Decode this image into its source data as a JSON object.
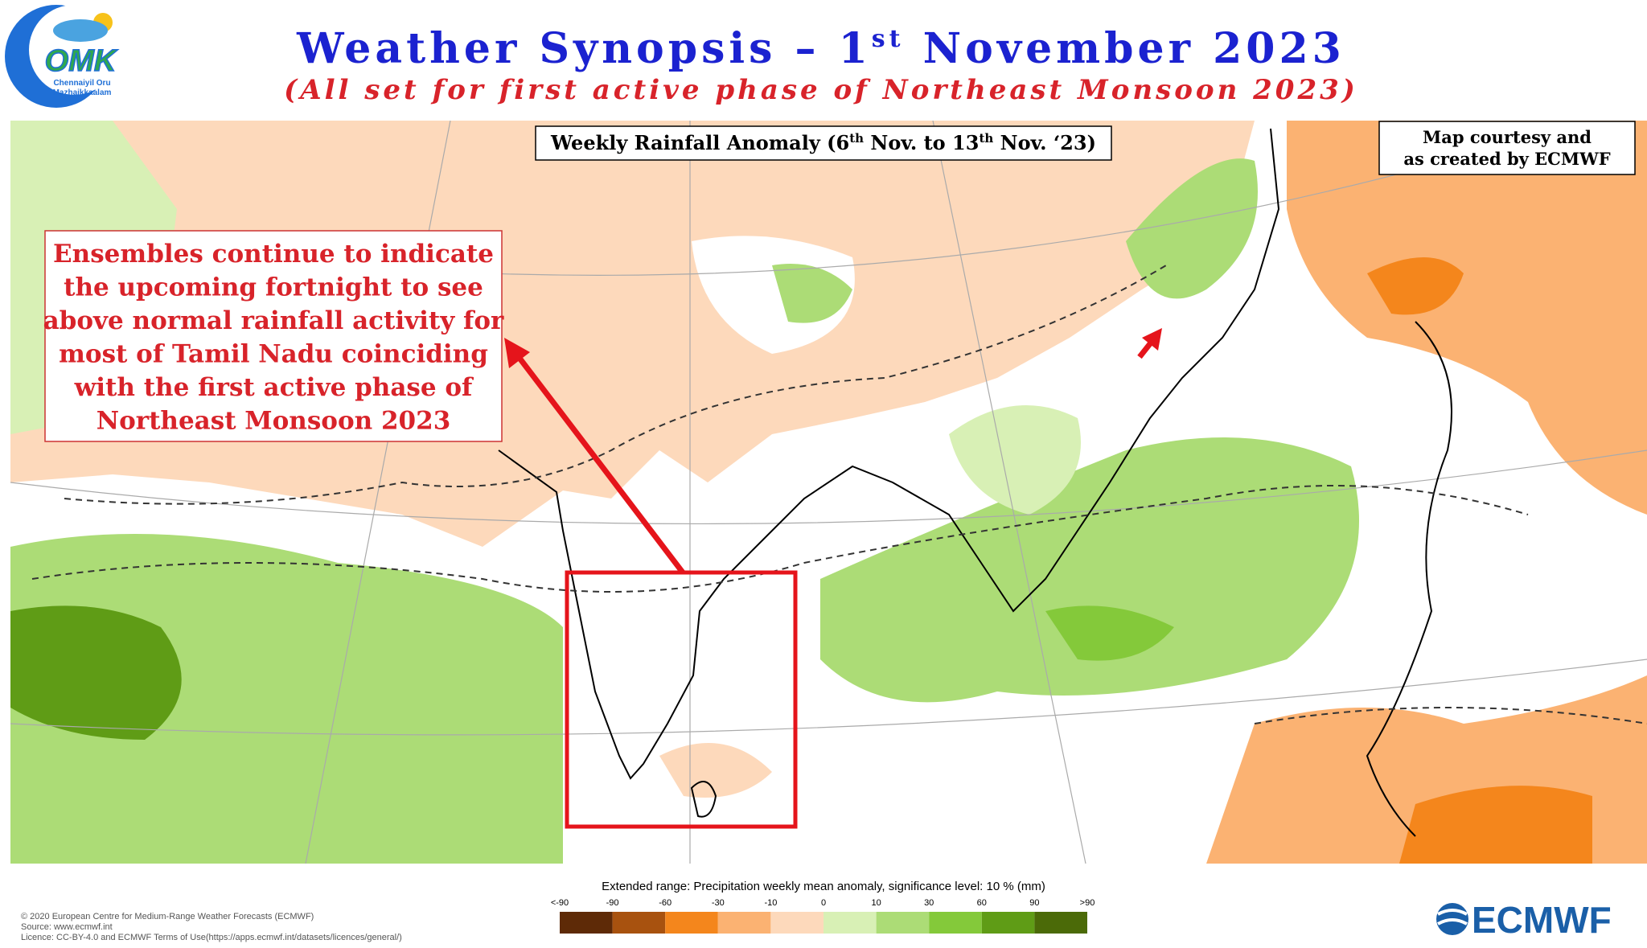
{
  "logo": {
    "mark": "OMK",
    "lines": [
      "Chennaiyil Oru",
      "Mazhaikkaalam"
    ]
  },
  "header": {
    "title": {
      "before": "Weather Synopsis – 1",
      "sup": "st",
      "after": " November 2023"
    },
    "subtitle": "(All set for first active phase of Northeast Monsoon 2023)"
  },
  "map": {
    "title": {
      "p1": "Weekly Rainfall Anomaly (6",
      "s1": "th",
      "p2": " Nov. to 13",
      "s2": "th",
      "p3": " Nov. ‘23)"
    },
    "credit": [
      "Map courtesy and",
      "as created by ECMWF"
    ],
    "annotation": [
      "Ensembles continue to indicate",
      "the upcoming fortnight to see",
      "above normal rainfall activity for",
      "most of Tamil Nadu coinciding",
      "with the first active phase of",
      "Northeast Monsoon 2023"
    ]
  },
  "legend": {
    "title": "Extended range: Precipitation weekly mean anomaly, significance level: 10 % (mm)",
    "labels": [
      "<-90",
      "-90",
      "-60",
      "-30",
      "-10",
      "0",
      "10",
      "30",
      "60",
      "90",
      ">90"
    ],
    "colors": [
      "#5e2a07",
      "#a8520f",
      "#f4861c",
      "#fbb272",
      "#fdd9bb",
      "#d8f0b5",
      "#acdc76",
      "#84c93a",
      "#5f9c16",
      "#4b6a08"
    ]
  },
  "footer": {
    "lines": [
      "© 2020 European Centre for Medium-Range Weather Forecasts (ECMWF)",
      "Source: www.ecmwf.int",
      "Licence: CC-BY-4.0 and ECMWF Terms of Use(https://apps.ecmwf.int/datasets/licences/general/)"
    ],
    "brand": "ECMWF"
  }
}
